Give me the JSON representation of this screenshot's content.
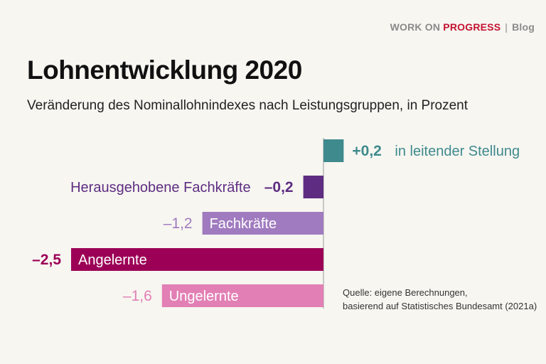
{
  "brand": {
    "name_plain": "WORK ON ",
    "name_accent": "PROGRESS",
    "separator": "|",
    "section": "Blog"
  },
  "title": "Lohnentwicklung 2020",
  "subtitle": "Veränderung des Nominallohnindexes nach Leistungsgruppen, in Prozent",
  "source": {
    "line1": "Quelle: eigene Berechnungen,",
    "line2": "basierend auf Statistisches Bundesamt (2021a)"
  },
  "colors": {
    "accent": "#c4122f",
    "axis": "#9a9a9a"
  },
  "chart_data": {
    "type": "bar",
    "orientation": "horizontal",
    "categories": [
      "in leitender Stellung",
      "Herausgehobene Fachkräfte",
      "Fachkräfte",
      "Angelernte",
      "Ungelernte"
    ],
    "values": [
      0.2,
      -0.2,
      -1.2,
      -2.5,
      -1.6
    ],
    "value_labels": [
      "+0,2",
      "–0,2",
      "–1,2",
      "–2,5",
      "–1,6"
    ],
    "colors": [
      "#3f8a8d",
      "#5e2d82",
      "#a07bbf",
      "#9c0056",
      "#e27fb4"
    ],
    "label_colors": [
      "#3f8a8d",
      "#5e2d82",
      "#a07bbf",
      "#9c0056",
      "#e27fb4"
    ],
    "title": "Lohnentwicklung 2020",
    "xlabel": "",
    "ylabel": "",
    "xlim": [
      -2.5,
      0.2
    ],
    "grid": false
  }
}
